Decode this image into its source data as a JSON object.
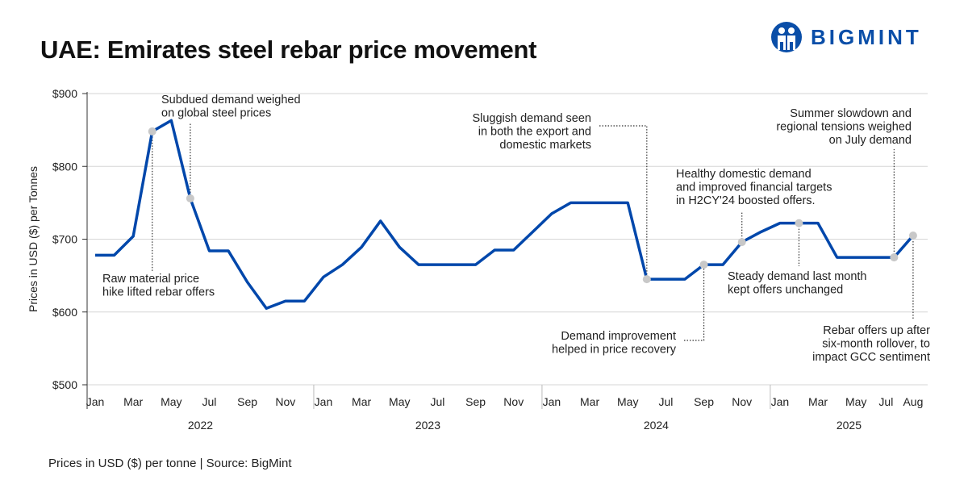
{
  "title": "UAE: Emirates steel rebar price movement",
  "logo": {
    "text": "BIGMINT",
    "color": "#0a4ea8"
  },
  "footer": "Prices in USD ($) per tonne  |  Source: BigMint",
  "chart_data": {
    "type": "line",
    "ylabel": "Prices in USD ($) per Tonnes",
    "ylim": [
      500,
      900
    ],
    "yticks": [
      "$500",
      "$600",
      "$700",
      "$800",
      "$900"
    ],
    "yticks_values": [
      500,
      600,
      700,
      800,
      900
    ],
    "grid": true,
    "line_color": "#0047ab",
    "marker_color": "#c8c8c8",
    "years": [
      "2022",
      "2023",
      "2024",
      "2025"
    ],
    "month_labels": [
      {
        "index": 0,
        "label": "Jan"
      },
      {
        "index": 2,
        "label": "Mar"
      },
      {
        "index": 4,
        "label": "May"
      },
      {
        "index": 6,
        "label": "Jul"
      },
      {
        "index": 8,
        "label": "Sep"
      },
      {
        "index": 10,
        "label": "Nov"
      },
      {
        "index": 12,
        "label": "Jan"
      },
      {
        "index": 14,
        "label": "Mar"
      },
      {
        "index": 16,
        "label": "May"
      },
      {
        "index": 18,
        "label": "Jul"
      },
      {
        "index": 20,
        "label": "Sep"
      },
      {
        "index": 22,
        "label": "Nov"
      },
      {
        "index": 24,
        "label": "Jan"
      },
      {
        "index": 26,
        "label": "Mar"
      },
      {
        "index": 28,
        "label": "May"
      },
      {
        "index": 30,
        "label": "Jul"
      },
      {
        "index": 32,
        "label": "Sep"
      },
      {
        "index": 34,
        "label": "Nov"
      },
      {
        "index": 36,
        "label": "Jan"
      },
      {
        "index": 38,
        "label": "Mar"
      },
      {
        "index": 40,
        "label": "May"
      },
      {
        "index": 42,
        "label": "Jul"
      },
      {
        "index": 43,
        "label": "Aug"
      }
    ],
    "x": [
      "Jan 2022",
      "Feb 2022",
      "Mar 2022",
      "Apr 2022",
      "May 2022",
      "Jun 2022",
      "Jul 2022",
      "Aug 2022",
      "Sep 2022",
      "Oct 2022",
      "Nov 2022",
      "Dec 2022",
      "Jan 2023",
      "Feb 2023",
      "Mar 2023",
      "Apr 2023",
      "May 2023",
      "Jun 2023",
      "Jul 2023",
      "Aug 2023",
      "Sep 2023",
      "Oct 2023",
      "Nov 2023",
      "Dec 2023",
      "Jan 2024",
      "Feb 2024",
      "Mar 2024",
      "Apr 2024",
      "May 2024",
      "Jun 2024",
      "Jul 2024",
      "Aug 2024",
      "Sep 2024",
      "Oct 2024",
      "Nov 2024",
      "Dec 2024",
      "Jan 2025",
      "Feb 2025",
      "Mar 2025",
      "Apr 2025",
      "May 2025",
      "Jun 2025",
      "Jul 2025",
      "Aug 2025"
    ],
    "values": [
      678,
      678,
      704,
      848,
      863,
      756,
      684,
      684,
      641,
      605,
      615,
      615,
      648,
      665,
      689,
      725,
      689,
      665,
      665,
      665,
      665,
      685,
      685,
      710,
      735,
      750,
      750,
      750,
      750,
      645,
      645,
      645,
      665,
      665,
      696,
      710,
      722,
      722,
      722,
      675,
      675,
      675,
      675,
      705
    ],
    "annotations": [
      {
        "point": 3,
        "lines": [
          "Raw material price",
          "hike lifted rebar offers"
        ]
      },
      {
        "point": 5,
        "lines": [
          "Subdued demand weighed",
          "on global steel prices"
        ]
      },
      {
        "point": 29,
        "lines": [
          "Sluggish demand seen",
          "in both the export and",
          "domestic markets"
        ]
      },
      {
        "point": 34,
        "lines": [
          "Healthy domestic demand",
          "and improved financial targets",
          "in H2CY'24 boosted offers."
        ]
      },
      {
        "point": 37,
        "lines": [
          "Steady demand last month",
          "kept offers unchanged"
        ]
      },
      {
        "point": 32,
        "lines": [
          "Demand improvement",
          "helped in price recovery"
        ]
      },
      {
        "point": 42,
        "lines": [
          "Summer slowdown and",
          "regional tensions weighed",
          "on July demand"
        ]
      },
      {
        "point": 43,
        "lines": [
          "Rebar offers up after",
          "six-month rollover, to",
          "impact GCC sentiment"
        ]
      }
    ]
  }
}
